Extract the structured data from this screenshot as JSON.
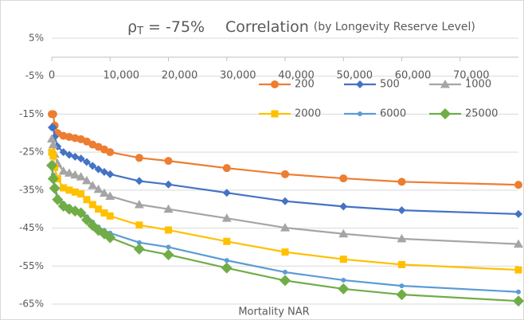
{
  "chart_data": {
    "type": "line",
    "title": {
      "symbol": "ρ",
      "subscript": "T",
      "value": " = -75%",
      "main": "Correlation",
      "note": "(by Longevity Reserve Level)"
    },
    "x_label": "Mortality NAR",
    "x": [
      0,
      250,
      500,
      1000,
      2000,
      3000,
      4000,
      5000,
      6000,
      7000,
      8000,
      9000,
      10000,
      15000,
      20000,
      30000,
      40000,
      50000,
      60000,
      80000
    ],
    "xlim": [
      0,
      80000
    ],
    "xticks": [
      0,
      {
        "value": 10000,
        "label": "10,000"
      },
      {
        "value": 20000,
        "label": "20,000"
      },
      {
        "value": 30000,
        "label": "30,000"
      },
      {
        "value": 40000,
        "label": "40,000"
      },
      {
        "value": 50000,
        "label": "50,000"
      },
      {
        "value": 60000,
        "label": "60,000"
      },
      {
        "value": 70000,
        "label": "70,000"
      }
    ],
    "ylim": [
      -65,
      5
    ],
    "yticks": [
      {
        "value": 5,
        "label": "5%"
      },
      {
        "value": -5,
        "label": "-5%"
      },
      {
        "value": -15,
        "label": "-15%"
      },
      {
        "value": -25,
        "label": "-25%"
      },
      {
        "value": -35,
        "label": "-35%"
      },
      {
        "value": -45,
        "label": "-45%"
      },
      {
        "value": -55,
        "label": "-55%"
      },
      {
        "value": -65,
        "label": "-65%"
      }
    ],
    "grid": true,
    "legend": "top-right",
    "series": [
      {
        "name": "200",
        "color": "#ed7d31",
        "marker": "circle",
        "values": [
          -15,
          -15,
          -18,
          -20,
          -20.7,
          -21,
          -21.3,
          -21.6,
          -22.2,
          -23,
          -23.6,
          -24.3,
          -25,
          -26.5,
          -27.3,
          -29.2,
          -30.8,
          -31.9,
          -32.8,
          -33.6
        ]
      },
      {
        "name": "500",
        "color": "#4472c4",
        "marker": "diamond",
        "values": [
          -18.5,
          -18.5,
          -21,
          -23.5,
          -25,
          -25.7,
          -26.2,
          -26.7,
          -27.6,
          -28.6,
          -29.5,
          -30.2,
          -30.8,
          -32.6,
          -33.5,
          -35.7,
          -37.9,
          -39.3,
          -40.3,
          -41.3
        ]
      },
      {
        "name": "1000",
        "color": "#a5a5a5",
        "marker": "triangle",
        "values": [
          -21.5,
          -23,
          -25.5,
          -28,
          -30,
          -30.5,
          -31,
          -31.5,
          -32.5,
          -33.8,
          -34.8,
          -35.8,
          -36.6,
          -38.8,
          -40,
          -42.4,
          -44.9,
          -46.5,
          -47.8,
          -49.2
        ]
      },
      {
        "name": "2000",
        "color": "#ffc000",
        "marker": "square",
        "values": [
          -25,
          -26,
          -29,
          -32,
          -34.4,
          -35,
          -35.5,
          -36,
          -37.5,
          -38.8,
          -40,
          -41,
          -41.8,
          -44.2,
          -45.5,
          -48.5,
          -51.3,
          -53.2,
          -54.6,
          -56
        ]
      },
      {
        "name": "6000",
        "color": "#5b9bd5",
        "marker": "dot",
        "values": [
          -28.5,
          -31,
          -34,
          -36.8,
          -38.5,
          -39.3,
          -40,
          -40.6,
          -42,
          -43.4,
          -44.7,
          -45.6,
          -46.3,
          -48.8,
          -50,
          -53.5,
          -56.6,
          -58.7,
          -60.2,
          -61.8
        ]
      },
      {
        "name": "25000",
        "color": "#70ad47",
        "marker": "bigdiamond",
        "values": [
          -28.5,
          -32,
          -34.5,
          -37.5,
          -39.2,
          -40,
          -40.5,
          -41,
          -42.8,
          -44.3,
          -45.6,
          -46.5,
          -47.5,
          -50.5,
          -52,
          -55.5,
          -58.8,
          -61,
          -62.5,
          -64.2
        ]
      }
    ]
  }
}
